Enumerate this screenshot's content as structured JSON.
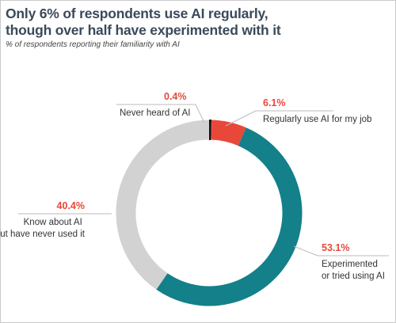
{
  "header": {
    "title": "Only 6% of respondents use AI regularly,\nthough over half have experimented with it",
    "subtitle": "% of respondents reporting their familiarity with AI"
  },
  "colors": {
    "title": "#3a4a5a",
    "percent_label": "#e8483a",
    "leader_line": "#bbbbbb"
  },
  "chart_data": {
    "type": "pie",
    "style": "donut",
    "title": "Only 6% of respondents use AI regularly, though over half have experimented with it",
    "subtitle": "% of respondents reporting their familiarity with AI",
    "unit": "%",
    "slices": [
      {
        "name": "Never heard of AI",
        "label_lines": [
          "Never heard of AI"
        ],
        "value": 0.4,
        "value_label": "0.4%",
        "color": "#111111"
      },
      {
        "name": "Regularly use AI for my job",
        "label_lines": [
          "Regularly use AI for my job"
        ],
        "value": 6.1,
        "value_label": "6.1%",
        "color": "#e8483a"
      },
      {
        "name": "Experimented or tried using AI",
        "label_lines": [
          "Experimented",
          "or tried using AI"
        ],
        "value": 53.1,
        "value_label": "53.1%",
        "color": "#13808a"
      },
      {
        "name": "Know about AI but have never used it",
        "label_lines": [
          "Know about AI",
          "but have never used it"
        ],
        "value": 40.4,
        "value_label": "40.4%",
        "color": "#d2d2d2"
      }
    ]
  }
}
